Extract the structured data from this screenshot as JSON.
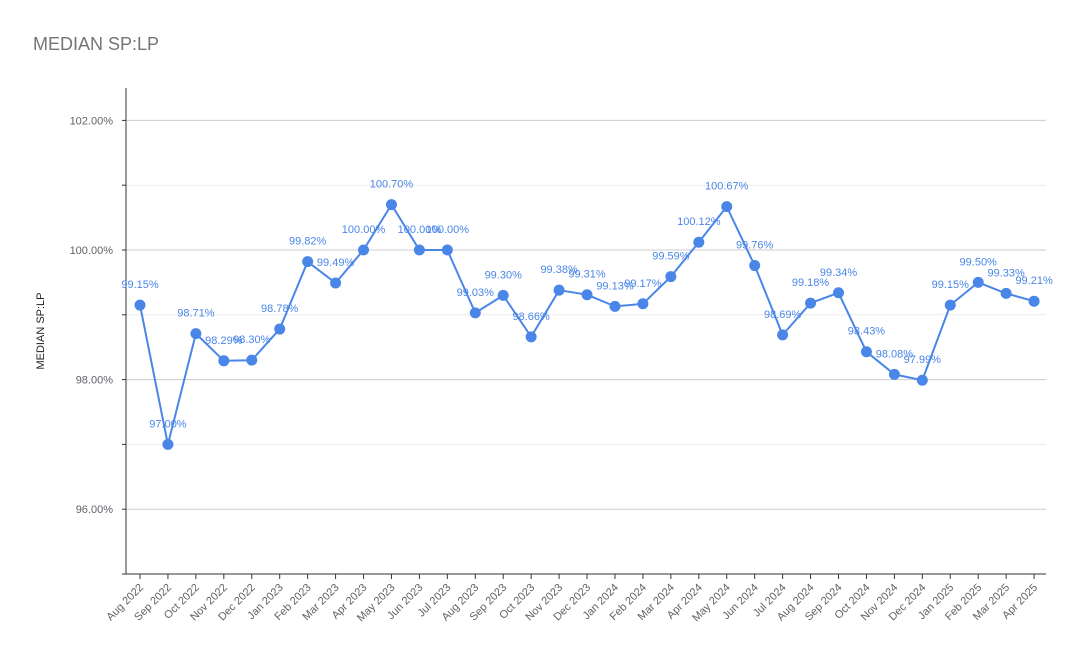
{
  "chart_data": {
    "type": "line",
    "title": "MEDIAN SP:LP",
    "ylabel": "MEDIAN SP:LP",
    "xlabel": "",
    "ylim": [
      95.0,
      102.5
    ],
    "yticks": [
      96,
      98,
      100,
      102
    ],
    "ytick_labels": [
      "96.00%",
      "98.00%",
      "100.00%",
      "102.00%"
    ],
    "grid": true,
    "legend": "none",
    "color": "#4a86e8",
    "categories": [
      "Aug 2022",
      "Sep 2022",
      "Oct 2022",
      "Nov 2022",
      "Dec 2022",
      "Jan 2023",
      "Feb 2023",
      "Mar 2023",
      "Apr 2023",
      "May 2023",
      "Jun 2023",
      "Jul 2023",
      "Aug 2023",
      "Sep 2023",
      "Oct 2023",
      "Nov 2023",
      "Dec 2023",
      "Jan 2024",
      "Feb 2024",
      "Mar 2024",
      "Apr 2024",
      "May 2024",
      "Jun 2024",
      "Jul 2024",
      "Aug 2024",
      "Sep 2024",
      "Oct 2024",
      "Nov 2024",
      "Dec 2024",
      "Jan 2025",
      "Feb 2025",
      "Mar 2025",
      "Apr 2025"
    ],
    "values": [
      99.15,
      97.0,
      98.71,
      98.29,
      98.3,
      98.78,
      99.82,
      99.49,
      100.0,
      100.7,
      100.0,
      100.0,
      99.03,
      99.3,
      98.66,
      99.38,
      99.31,
      99.13,
      99.17,
      99.59,
      100.12,
      100.67,
      99.76,
      98.69,
      99.18,
      99.34,
      98.43,
      98.08,
      97.99,
      99.15,
      99.5,
      99.33,
      99.21
    ],
    "data_labels": [
      "99.15%",
      "97.00%",
      "98.71%",
      "98.29%",
      "98.30%",
      "98.78%",
      "99.82%",
      "99.49%",
      "100.00%",
      "100.70%",
      "100.00%",
      "100.00%",
      "99.03%",
      "99.30%",
      "98.66%",
      "99.38%",
      "99.31%",
      "99.13%",
      "99.17%",
      "99.59%",
      "100.12%",
      "100.67%",
      "99.76%",
      "98.69%",
      "99.18%",
      "99.34%",
      "98.43%",
      "98.08%",
      "97.99%",
      "99.15%",
      "99.50%",
      "99.33%",
      "99.21%"
    ]
  }
}
